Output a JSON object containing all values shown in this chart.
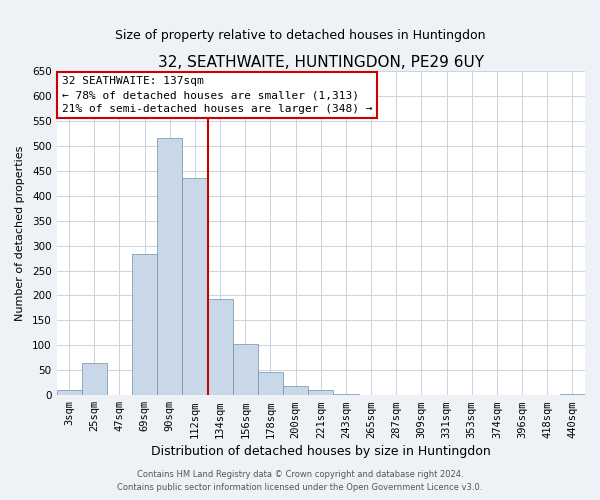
{
  "title": "32, SEATHWAITE, HUNTINGDON, PE29 6UY",
  "subtitle": "Size of property relative to detached houses in Huntingdon",
  "xlabel": "Distribution of detached houses by size in Huntingdon",
  "ylabel": "Number of detached properties",
  "bar_labels": [
    "3sqm",
    "25sqm",
    "47sqm",
    "69sqm",
    "90sqm",
    "112sqm",
    "134sqm",
    "156sqm",
    "178sqm",
    "200sqm",
    "221sqm",
    "243sqm",
    "265sqm",
    "287sqm",
    "309sqm",
    "331sqm",
    "353sqm",
    "374sqm",
    "396sqm",
    "418sqm",
    "440sqm"
  ],
  "bar_heights": [
    10,
    65,
    0,
    283,
    515,
    435,
    192,
    102,
    46,
    18,
    10,
    2,
    0,
    0,
    0,
    0,
    0,
    0,
    0,
    0,
    3
  ],
  "bar_color": "#c8d8e8",
  "bar_edge_color": "#7090a8",
  "highlight_line_index": 6,
  "highlight_line_color": "#cc0000",
  "annotation_title": "32 SEATHWAITE: 137sqm",
  "annotation_line1": "← 78% of detached houses are smaller (1,313)",
  "annotation_line2": "21% of semi-detached houses are larger (348) →",
  "annotation_box_color": "#ffffff",
  "annotation_box_edge": "#cc0000",
  "ylim": [
    0,
    650
  ],
  "yticks": [
    0,
    50,
    100,
    150,
    200,
    250,
    300,
    350,
    400,
    450,
    500,
    550,
    600,
    650
  ],
  "footer1": "Contains HM Land Registry data © Crown copyright and database right 2024.",
  "footer2": "Contains public sector information licensed under the Open Government Licence v3.0.",
  "bg_color": "#eef2f6",
  "plot_bg_color": "#ffffff",
  "grid_color": "#c8d4e0",
  "title_fontsize": 11,
  "subtitle_fontsize": 9,
  "xlabel_fontsize": 9,
  "ylabel_fontsize": 8,
  "tick_fontsize": 7.5,
  "annotation_fontsize": 8,
  "footer_fontsize": 6
}
